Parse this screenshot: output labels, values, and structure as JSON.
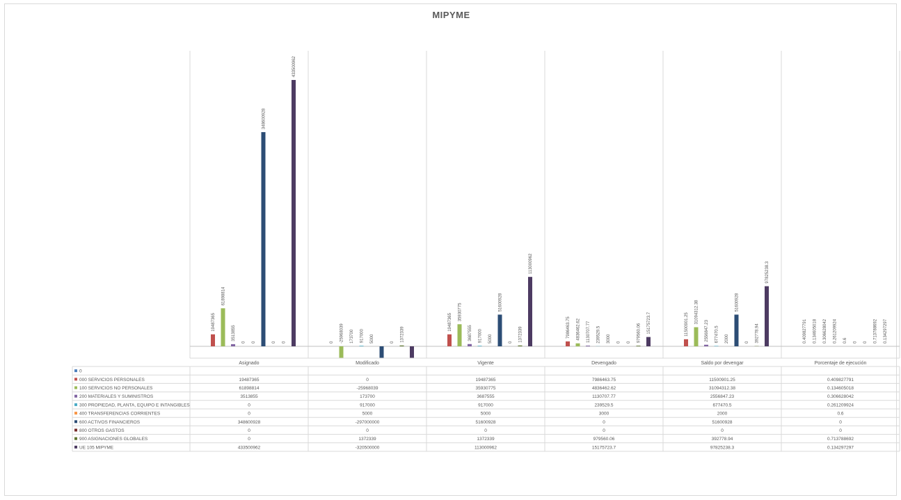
{
  "chart_data": {
    "type": "bar",
    "title": "MIPYME",
    "categories": [
      "Asignado",
      "Modificado",
      "Vigente",
      "Devengado",
      "Saldo por devengar",
      "Porcentaje de ejecución"
    ],
    "series": [
      {
        "name": "0",
        "color": "#4f81bd",
        "values": [
          null,
          null,
          null,
          null,
          null,
          null
        ],
        "value_labels": [
          "",
          "",
          "",
          "",
          "",
          ""
        ]
      },
      {
        "name": "000 SERVICIOS PERSONALES",
        "color": "#c0504d",
        "values": [
          19487365,
          0,
          19487365,
          7986463.75,
          11500901.25,
          0.409827791
        ],
        "value_labels": [
          "19487365",
          "0",
          "19487365",
          "7986463.75",
          "11500901.25",
          "0.409827791"
        ]
      },
      {
        "name": "100 SERVICIOS NO PERSONALES",
        "color": "#9bbb59",
        "values": [
          61898814,
          -25968039,
          35930775,
          4836462.62,
          31094312.38,
          0.134605018
        ],
        "value_labels": [
          "61898814",
          "-25968039",
          "35930775",
          "4836462.62",
          "31094312.38",
          "0.134605018"
        ]
      },
      {
        "name": "200 MATERIALES Y SUMINISTROS",
        "color": "#8064a2",
        "values": [
          3513855,
          173700,
          3687555,
          1130707.77,
          2556847.23,
          0.306628042
        ],
        "value_labels": [
          "3513855",
          "173700",
          "3687555",
          "1130707.77",
          "2556847.23",
          "0.306628042"
        ]
      },
      {
        "name": "300 PROPIEDAD, PLANTA, EQUIPO  E INTANGIBLES",
        "color": "#4bacc6",
        "values": [
          0,
          917000,
          917000,
          239529.5,
          677470.5,
          0.261209924
        ],
        "value_labels": [
          "0",
          "917000",
          "917000",
          "239529.5",
          "677470.5",
          "0.261209924"
        ]
      },
      {
        "name": "400 TRANSFERENCIAS CORRIENTES",
        "color": "#f79646",
        "values": [
          0,
          5000,
          5000,
          3000,
          2000,
          0.6
        ],
        "value_labels": [
          "0",
          "5000",
          "5000",
          "3000",
          "2000",
          "0.6"
        ]
      },
      {
        "name": "600 ACTIVOS FINANCIEROS",
        "color": "#2c4d75",
        "values": [
          348600928,
          -297000000,
          51600928,
          0,
          51600928,
          0
        ],
        "value_labels": [
          "348600928",
          "",
          "51600928",
          "0",
          "51600928",
          "0"
        ]
      },
      {
        "name": "800 OTROS GASTOS",
        "color": "#772c2a",
        "values": [
          0,
          0,
          0,
          0,
          0,
          0
        ],
        "value_labels": [
          "0",
          "0",
          "0",
          "0",
          "0",
          "0"
        ]
      },
      {
        "name": "900 ASIGNACIONES GLOBALES",
        "color": "#5f7530",
        "values": [
          0,
          1372339,
          1372339,
          979560.06,
          392778.94,
          0.713788692
        ],
        "value_labels": [
          "0",
          "1372339",
          "1372339",
          "979560.06",
          "392778.94",
          "0.713788692"
        ]
      },
      {
        "name": "UE 105 MIPYME",
        "color": "#4d3b62",
        "values": [
          433500962,
          -320500000,
          113000962,
          15175723.7,
          97825238.3,
          0.134297297
        ],
        "value_labels": [
          "433500962",
          "",
          "113000962",
          "15175723.7",
          "97825238.3",
          "0.134297297"
        ]
      }
    ],
    "table": {
      "rows": [
        [
          "",
          "",
          "",
          "",
          "",
          ""
        ],
        [
          "19487365",
          "0",
          "19487365",
          "7986463.75",
          "11500901.25",
          "0.409827791"
        ],
        [
          "61898814",
          "-25968039",
          "35930775",
          "4836462.62",
          "31094312.38",
          "0.134605018"
        ],
        [
          "3513855",
          "173700",
          "3687555",
          "1130707.77",
          "2556847.23",
          "0.306628042"
        ],
        [
          "0",
          "917000",
          "917000",
          "239529.5",
          "677470.5",
          "0.261209924"
        ],
        [
          "0",
          "5000",
          "5000",
          "3000",
          "2000",
          "0.6"
        ],
        [
          "348600928",
          "-297000000",
          "51600928",
          "0",
          "51600928",
          "0"
        ],
        [
          "0",
          "0",
          "0",
          "0",
          "0",
          "0"
        ],
        [
          "0",
          "1372339",
          "1372339",
          "979560.06",
          "392778.94",
          "0.713788692"
        ],
        [
          "433500962",
          "-320500000",
          "113000962",
          "15175723.7",
          "97825238.3",
          "0.134297297"
        ]
      ]
    },
    "grid": "vertical category separators",
    "legend": "data table"
  }
}
